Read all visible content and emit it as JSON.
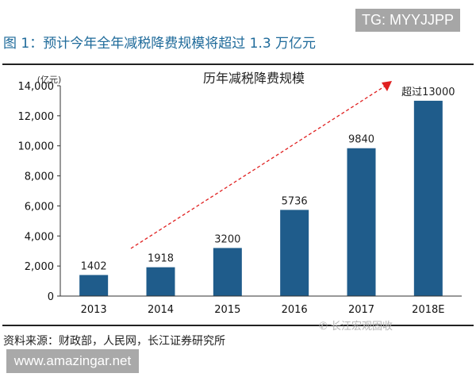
{
  "header": {
    "figure_title": "图 1：预计今年全年减税降费规模将超过 1.3 万亿元",
    "tg_badge": "TG: MYYJJPP"
  },
  "footer": {
    "source": "资料来源：财政部，人民网，长江证券研究所",
    "watermark_url": "www.amazingar.net",
    "wechat_watermark": "长江宏观固收"
  },
  "colors": {
    "bar": "#1f5c8b",
    "title": "#1e6a9a",
    "trend_arrow": "#e02020"
  },
  "chart_data": {
    "type": "bar",
    "title": "历年减税降费规模",
    "ylabel": "(亿元)",
    "categories": [
      "2013",
      "2014",
      "2015",
      "2016",
      "2017",
      "2018E"
    ],
    "values": [
      1402,
      1918,
      3200,
      5736,
      9840,
      13000
    ],
    "data_labels": [
      "1402",
      "1918",
      "3200",
      "5736",
      "9840",
      "超过13000"
    ],
    "ylim": [
      0,
      14000
    ],
    "yticks": [
      "0",
      "2,000",
      "4,000",
      "6,000",
      "8,000",
      "10,000",
      "12,000",
      "14,000"
    ],
    "grid": false,
    "annotations": [
      "dashed red upward trend arrow"
    ]
  }
}
